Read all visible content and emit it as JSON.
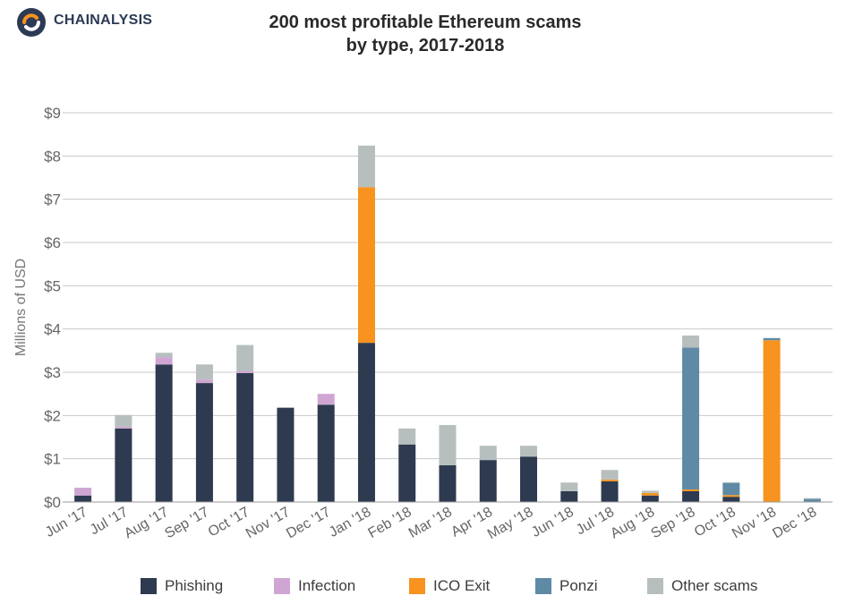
{
  "brand": "CHAINALYSIS",
  "logo_icon": "chainalysis-logo-icon",
  "title_lines": [
    "200 most profitable Ethereum scams",
    "by type, 2017-2018"
  ],
  "colors": {
    "Phishing": "#2e3a4f",
    "Infection": "#cfa6d3",
    "ICO Exit": "#f7931e",
    "Ponzi": "#5f8aa6",
    "Other scams": "#b6bfbe"
  },
  "chart_data": {
    "type": "bar",
    "stacked": true,
    "title": "200 most profitable Ethereum scams by type, 2017-2018",
    "xlabel": "",
    "ylabel": "Millions of USD",
    "ylim": [
      0,
      9
    ],
    "yticks": [
      0,
      1,
      2,
      3,
      4,
      5,
      6,
      7,
      8,
      9
    ],
    "ytick_labels": [
      "$0",
      "$1",
      "$2",
      "$3",
      "$4",
      "$5",
      "$6",
      "$7",
      "$8",
      "$9"
    ],
    "grid": true,
    "legend_position": "bottom",
    "categories": [
      "Jun '17",
      "Jul '17",
      "Aug '17",
      "Sep '17",
      "Oct '17",
      "Nov '17",
      "Dec '17",
      "Jan '18",
      "Feb '18",
      "Mar '18",
      "Apr '18",
      "May '18",
      "Jun '18",
      "Jul '18",
      "Aug '18",
      "Sep '18",
      "Oct '18",
      "Nov '18",
      "Dec '18"
    ],
    "series": [
      {
        "name": "Phishing",
        "values": [
          0.15,
          1.7,
          3.18,
          2.75,
          2.98,
          2.18,
          2.25,
          3.68,
          1.33,
          0.85,
          0.97,
          1.05,
          0.25,
          0.48,
          0.15,
          0.25,
          0.12,
          0.0,
          0.0
        ]
      },
      {
        "name": "Infection",
        "values": [
          0.18,
          0.04,
          0.17,
          0.08,
          0.05,
          0.0,
          0.25,
          0.0,
          0.0,
          0.0,
          0.0,
          0.0,
          0.0,
          0.0,
          0.0,
          0.0,
          0.0,
          0.0,
          0.0
        ]
      },
      {
        "name": "ICO Exit",
        "values": [
          0.0,
          0.0,
          0.0,
          0.0,
          0.0,
          0.0,
          0.0,
          3.6,
          0.0,
          0.0,
          0.0,
          0.0,
          0.0,
          0.04,
          0.06,
          0.04,
          0.04,
          3.74,
          0.0
        ]
      },
      {
        "name": "Ponzi",
        "values": [
          0.0,
          0.0,
          0.0,
          0.0,
          0.0,
          0.0,
          0.0,
          0.0,
          0.0,
          0.0,
          0.0,
          0.0,
          0.0,
          0.0,
          0.0,
          3.28,
          0.28,
          0.05,
          0.07
        ]
      },
      {
        "name": "Other scams",
        "values": [
          0.0,
          0.27,
          0.1,
          0.35,
          0.6,
          0.0,
          0.0,
          0.96,
          0.37,
          0.93,
          0.33,
          0.25,
          0.2,
          0.22,
          0.05,
          0.28,
          0.02,
          0.0,
          0.02
        ]
      }
    ]
  }
}
